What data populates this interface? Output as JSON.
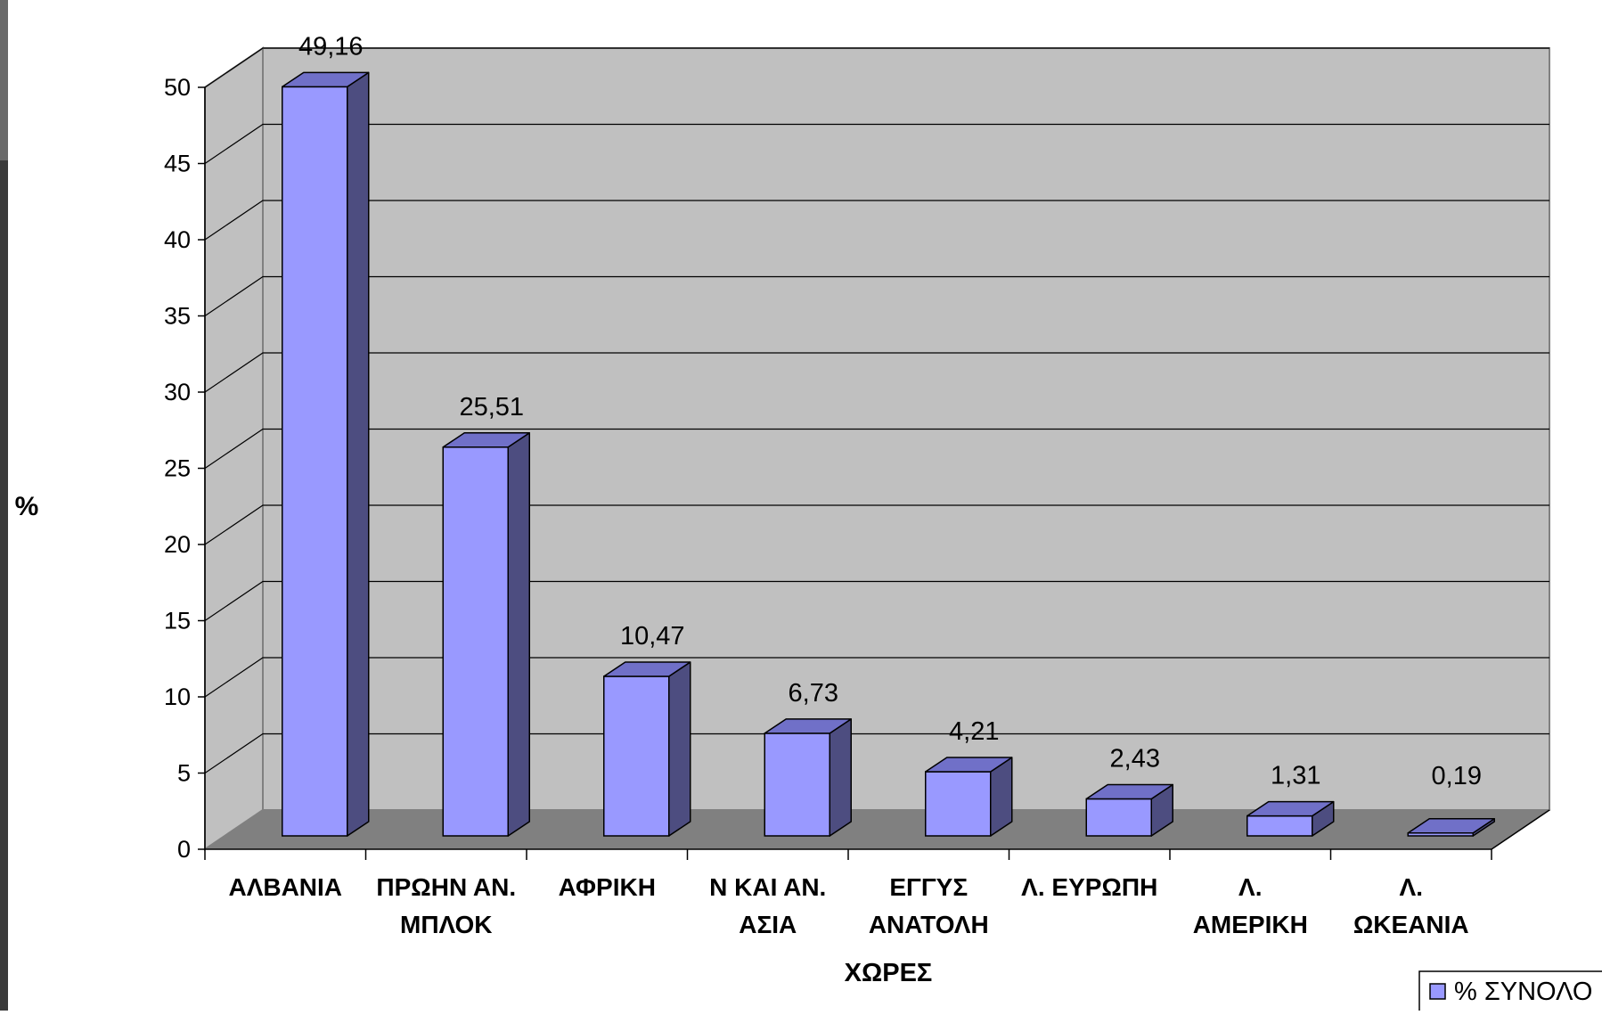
{
  "chart_data": {
    "type": "bar",
    "variant": "3d-column",
    "title": "",
    "xlabel": "ΧΩΡΕΣ",
    "ylabel": "%",
    "ylim": [
      0,
      50
    ],
    "y_ticks": [
      "0",
      "5",
      "10",
      "15",
      "20",
      "25",
      "30",
      "35",
      "40",
      "45",
      "50"
    ],
    "grid": true,
    "legend_position": "bottom-right",
    "categories": [
      [
        "ΑΛΒΑΝΙΑ"
      ],
      [
        "ΠΡΩΗΝ ΑΝ.",
        "ΜΠΛΟΚ"
      ],
      [
        "ΑΦΡΙΚΗ"
      ],
      [
        "Ν ΚΑΙ ΑΝ.",
        "ΑΣΙΑ"
      ],
      [
        "ΕΓΓΥΣ",
        "ΑΝΑΤΟΛΗ"
      ],
      [
        "Λ. ΕΥΡΩΠΗ"
      ],
      [
        "Λ.",
        "ΑΜΕΡΙΚΗ"
      ],
      [
        "Λ.",
        "ΩΚΕΑΝΙΑ"
      ]
    ],
    "series": [
      {
        "name": "% ΣΥΝΟΛΟ",
        "values": [
          49.16,
          25.51,
          10.47,
          6.73,
          4.21,
          2.43,
          1.31,
          0.19
        ],
        "labels": [
          "49,16",
          "25,51",
          "10,47",
          "6,73",
          "4,21",
          "2,43",
          "1,31",
          "0,19"
        ],
        "color": "#9999ff",
        "side_color": "#4d4d80",
        "top_color": "#7070c8"
      }
    ],
    "colors": {
      "wall": "#c0c0c0",
      "floor": "#808080",
      "gridline": "#000000"
    }
  }
}
